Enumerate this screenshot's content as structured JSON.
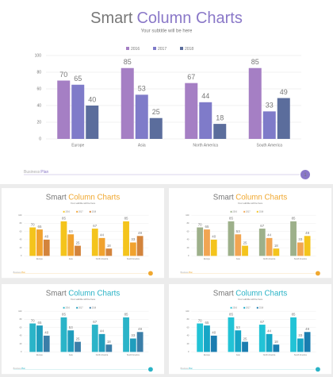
{
  "chart_data": [
    {
      "type": "bar",
      "title": [
        "Smart",
        "Column Charts"
      ],
      "subtitle": "Your subtitle will be here",
      "accent": "#8a78c8",
      "categories": [
        "Europe",
        "Asia",
        "North America",
        "South America"
      ],
      "series": [
        {
          "name": "2016",
          "color": "#a57fc4",
          "values": [
            70,
            85,
            67,
            85
          ]
        },
        {
          "name": "2017",
          "color": "#7f7bc9",
          "values": [
            65,
            53,
            44,
            33
          ]
        },
        {
          "name": "2018",
          "color": "#5b6d9c",
          "values": [
            40,
            25,
            18,
            49
          ]
        }
      ],
      "ylim": [
        0,
        100
      ],
      "yticks": [
        0,
        20,
        40,
        60,
        80,
        100
      ],
      "grid": true,
      "footer": [
        "Business",
        "Plan"
      ],
      "page": "1"
    },
    {
      "type": "bar",
      "title": [
        "Smart",
        "Column Charts"
      ],
      "subtitle": "Your subtitle will be here",
      "accent": "#f0a830",
      "categories": [
        "Europe",
        "Asia",
        "North America",
        "South America"
      ],
      "series": [
        {
          "name": "2016",
          "color": "#f4c41c",
          "values": [
            70,
            85,
            67,
            85
          ]
        },
        {
          "name": "2017",
          "color": "#f1a22e",
          "values": [
            65,
            53,
            44,
            33
          ]
        },
        {
          "name": "2018",
          "color": "#d3843c",
          "values": [
            40,
            25,
            18,
            49
          ]
        }
      ],
      "ylim": [
        0,
        100
      ],
      "yticks": [
        0,
        20,
        40,
        60,
        80,
        100
      ],
      "grid": true,
      "footer": [
        "Business",
        "Plan"
      ]
    },
    {
      "type": "bar",
      "title": [
        "Smart",
        "Column Charts"
      ],
      "subtitle": "Your subtitle will be here",
      "accent": "#f0a830",
      "categories": [
        "Europe",
        "Asia",
        "North America",
        "South America"
      ],
      "series": [
        {
          "name": "2016",
          "color": "#9db08a",
          "values": [
            70,
            85,
            67,
            85
          ]
        },
        {
          "name": "2017",
          "color": "#f1a552",
          "values": [
            65,
            53,
            44,
            33
          ]
        },
        {
          "name": "2018",
          "color": "#f4c41c",
          "values": [
            40,
            25,
            18,
            49
          ]
        }
      ],
      "ylim": [
        0,
        100
      ],
      "yticks": [
        0,
        20,
        40,
        60,
        80,
        100
      ],
      "grid": true,
      "footer": [
        "Business",
        "Plan"
      ]
    },
    {
      "type": "bar",
      "title": [
        "Smart",
        "Column Charts"
      ],
      "subtitle": "Your subtitle will be here",
      "accent": "#2ab3c6",
      "categories": [
        "Europe",
        "Asia",
        "North America",
        "South America"
      ],
      "series": [
        {
          "name": "2016",
          "color": "#2bb4c8",
          "values": [
            70,
            85,
            67,
            85
          ]
        },
        {
          "name": "2017",
          "color": "#1f9dbd",
          "values": [
            65,
            53,
            44,
            33
          ]
        },
        {
          "name": "2018",
          "color": "#3b7ea8",
          "values": [
            40,
            25,
            18,
            49
          ]
        }
      ],
      "ylim": [
        0,
        100
      ],
      "yticks": [
        0,
        20,
        40,
        60,
        80,
        100
      ],
      "grid": true,
      "footer": [
        "Business",
        "Plan"
      ]
    },
    {
      "type": "bar",
      "title": [
        "Smart",
        "Column Charts"
      ],
      "subtitle": "Your subtitle will be here",
      "accent": "#2ab3c6",
      "categories": [
        "Europe",
        "Asia",
        "North America",
        "South America"
      ],
      "series": [
        {
          "name": "2016",
          "color": "#22c3d6",
          "values": [
            70,
            85,
            67,
            85
          ]
        },
        {
          "name": "2017",
          "color": "#16a6c6",
          "values": [
            65,
            53,
            44,
            33
          ]
        },
        {
          "name": "2018",
          "color": "#1a7db0",
          "values": [
            40,
            25,
            18,
            49
          ]
        }
      ],
      "ylim": [
        0,
        100
      ],
      "yticks": [
        0,
        20,
        40,
        60,
        80,
        100
      ],
      "grid": true,
      "footer": [
        "Business",
        "Plan"
      ]
    }
  ]
}
